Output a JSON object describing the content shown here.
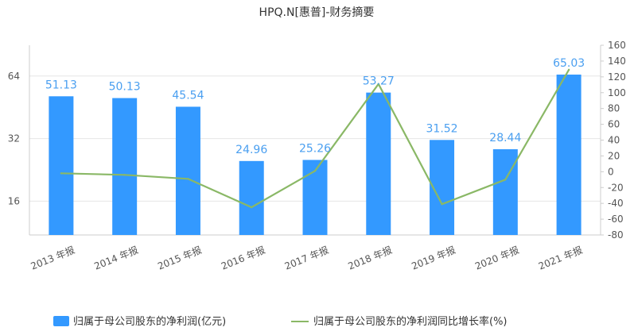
{
  "chart_data": {
    "type": "bar",
    "title": "HPQ.N[惠普]-财务摘要",
    "categories": [
      "2013 年报",
      "2014 年报",
      "2015 年报",
      "2016 年报",
      "2017 年报",
      "2018 年报",
      "2019 年报",
      "2020 年报",
      "2021 年报"
    ],
    "series": [
      {
        "name": "归属于母公司股东的净利润(亿元)",
        "type": "bar",
        "axis": "left",
        "values": [
          51.13,
          50.13,
          45.54,
          24.96,
          25.26,
          53.27,
          31.52,
          28.44,
          65.03
        ],
        "value_labels": [
          "51.13",
          "50.13",
          "45.54",
          "24.96",
          "25.26",
          "53.27",
          "31.52",
          "28.44",
          "65.03"
        ],
        "color": "#3399ff"
      },
      {
        "name": "归属于母公司股东的净利润同比增长率(%)",
        "type": "line",
        "axis": "right",
        "values": [
          -2,
          -4,
          -9,
          -45,
          1,
          111,
          -41,
          -10,
          129
        ],
        "color": "#8ab866"
      }
    ],
    "y_left": {
      "scale": "log2",
      "ticks": [
        16,
        32,
        64
      ],
      "range": [
        11,
        90
      ]
    },
    "y_right": {
      "ticks": [
        -80,
        -60,
        -40,
        -20,
        0,
        20,
        40,
        60,
        80,
        100,
        120,
        140,
        160
      ],
      "range": [
        -80,
        160
      ]
    },
    "legend_position": "bottom",
    "grid": true
  }
}
